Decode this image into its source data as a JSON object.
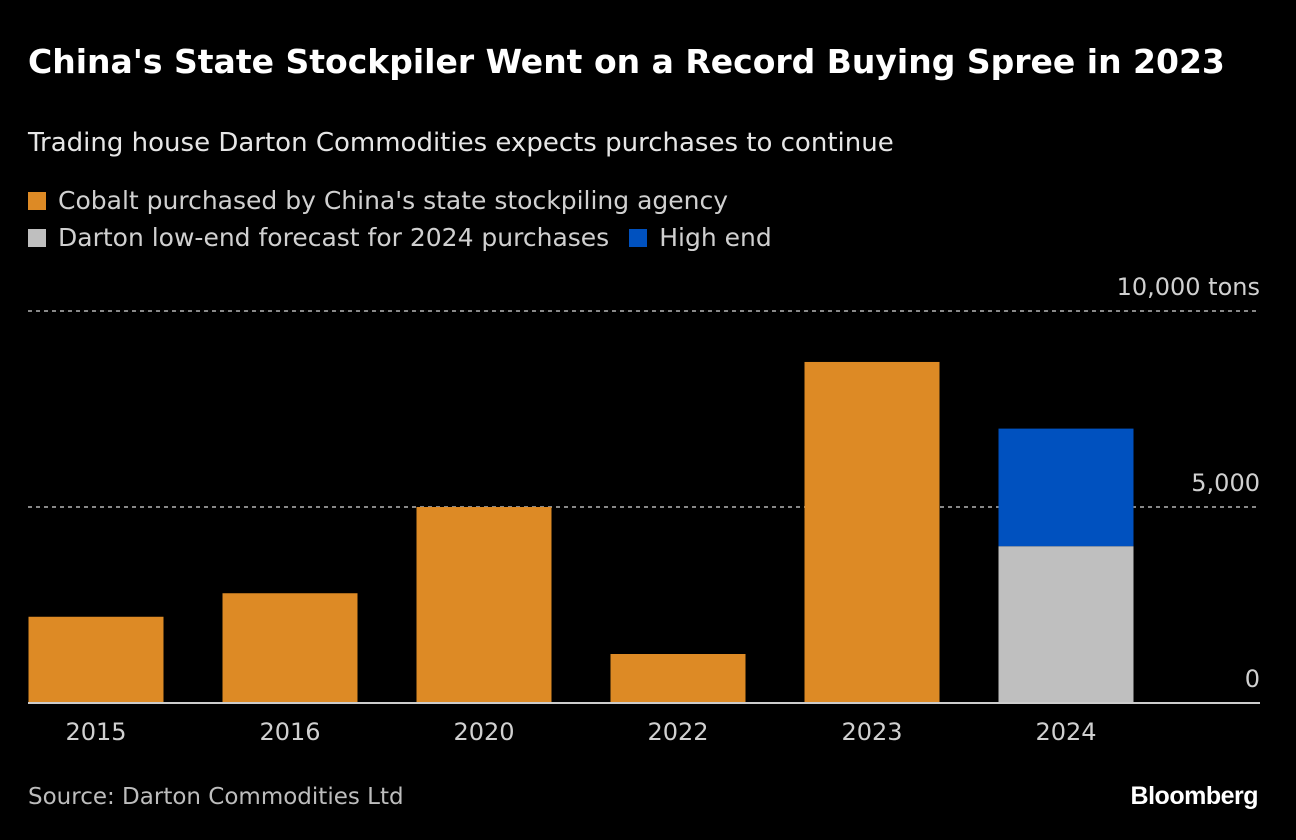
{
  "title": "China's State Stockpiler Went on a Record Buying Spree in 2023",
  "subtitle": "Trading house Darton Commodities expects purchases to continue",
  "source": "Source: Darton Commodities Ltd",
  "logo": "Bloomberg",
  "chart_data": {
    "type": "bar",
    "stacked": true,
    "categories": [
      "2015",
      "2016",
      "2020",
      "2022",
      "2023",
      "2024"
    ],
    "series": [
      {
        "name": "Cobalt purchased by China's state stockpiling agency",
        "color": "#dd8a25",
        "values": [
          2200,
          2800,
          5000,
          1250,
          8700,
          null
        ]
      },
      {
        "name": "Darton low-end forecast for 2024 purchases",
        "color": "#bfbfbf",
        "values": [
          null,
          null,
          null,
          null,
          null,
          4000
        ]
      },
      {
        "name": "High end",
        "color": "#0051bf",
        "values": [
          null,
          null,
          null,
          null,
          null,
          3000
        ]
      }
    ],
    "ylim": [
      0,
      10000
    ],
    "yticks": [
      {
        "value": 0,
        "label": "0"
      },
      {
        "value": 5000,
        "label": "5,000"
      },
      {
        "value": 10000,
        "label": "10,000 tons"
      }
    ],
    "grid": true,
    "legend_position": "top-left"
  }
}
